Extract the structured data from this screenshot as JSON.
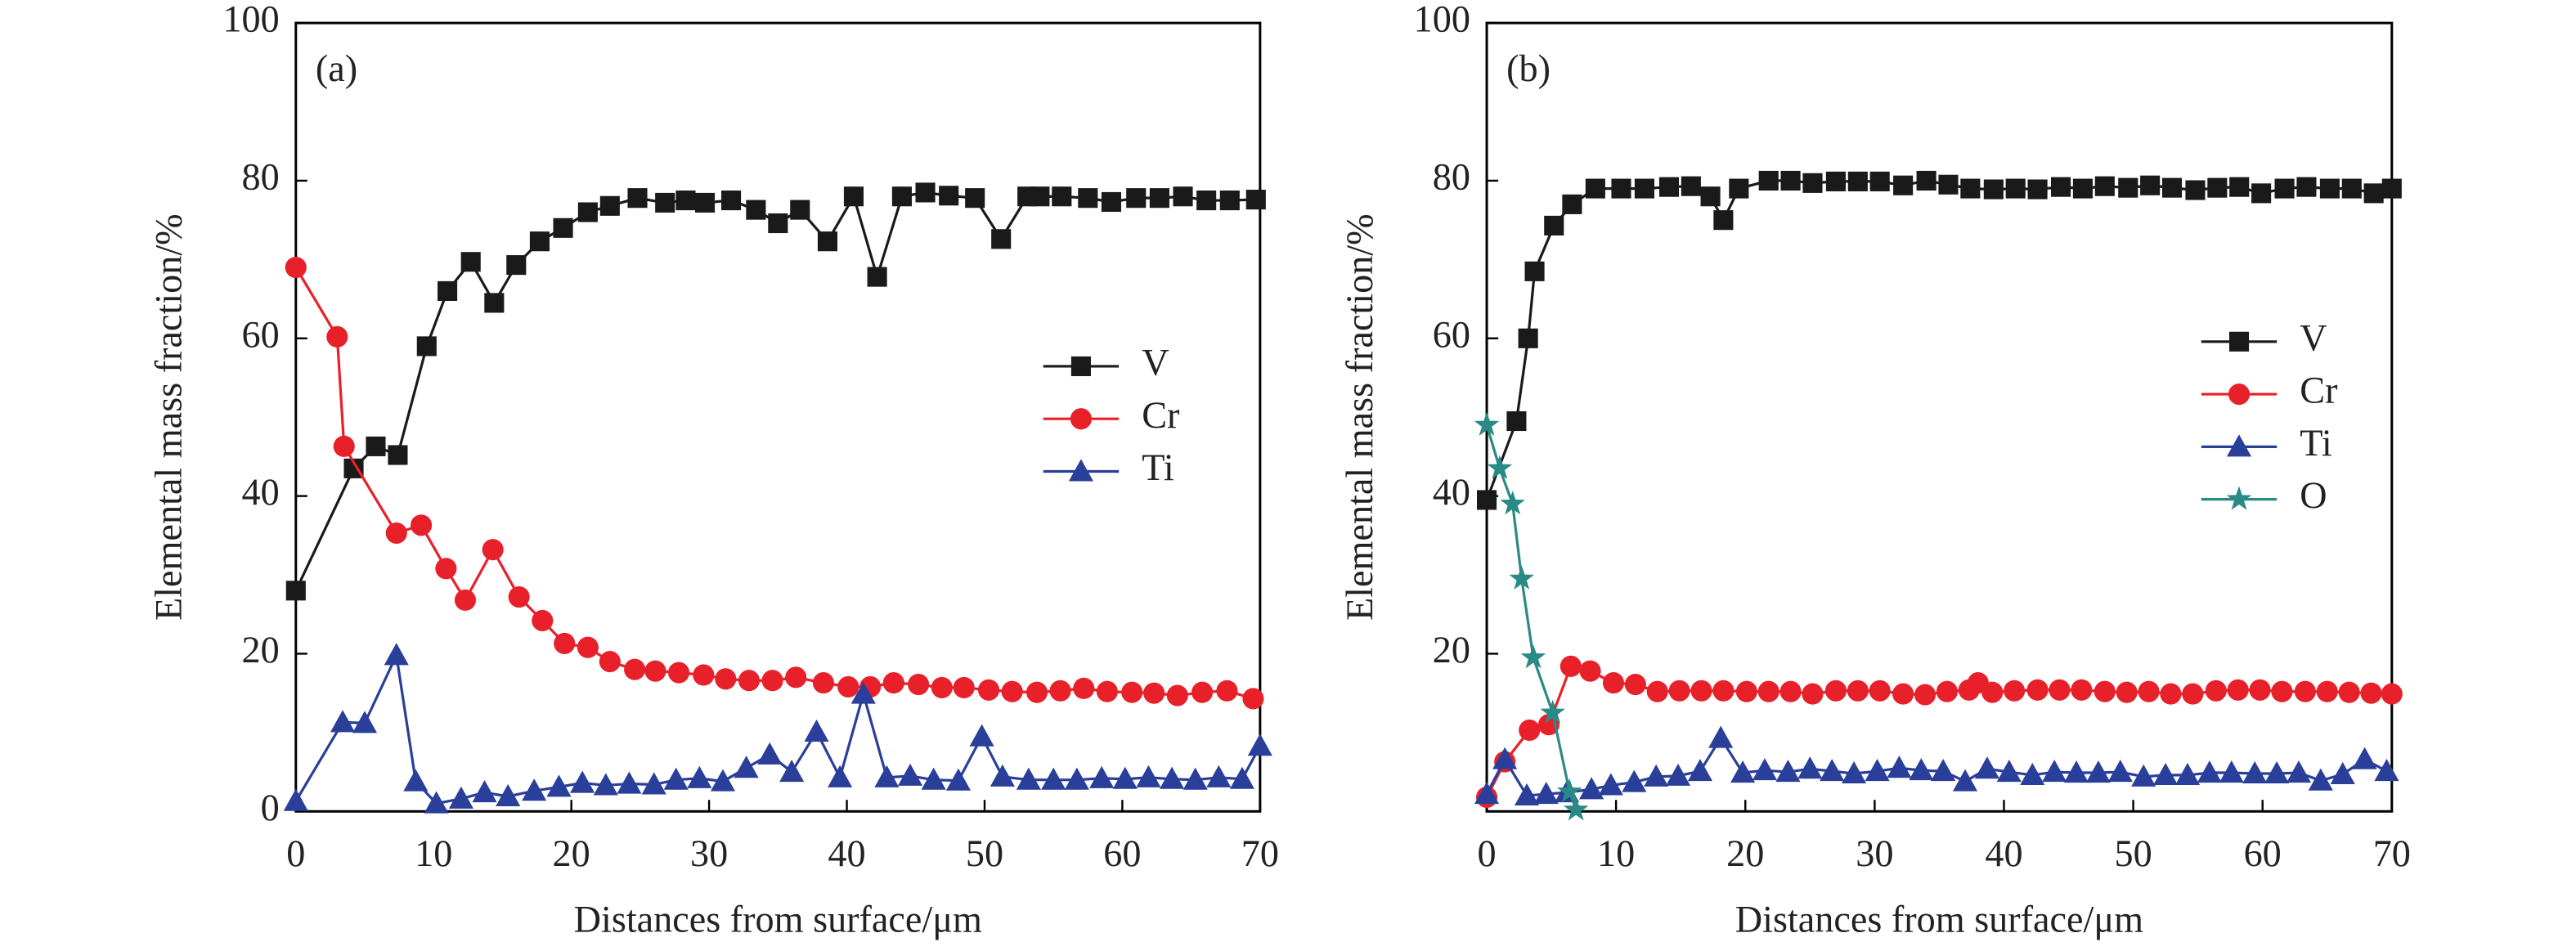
{
  "chart_data": [
    {
      "type": "line",
      "label": "(a)",
      "xlabel": "Distances from surface/μm",
      "ylabel": "Elemental mass fraction/%",
      "xlim": [
        0,
        70
      ],
      "ylim": [
        0,
        100
      ],
      "xticks": [
        0,
        10,
        20,
        30,
        40,
        50,
        60,
        70
      ],
      "yticks": [
        0,
        20,
        40,
        60,
        80,
        100
      ],
      "series": [
        {
          "name": "V",
          "color": "#1a1a1a",
          "marker": "square",
          "x": [
            0,
            4.2,
            5.8,
            7.4,
            9.5,
            11.0,
            12.7,
            14.4,
            16.0,
            17.7,
            19.4,
            21.2,
            22.8,
            24.8,
            26.8,
            28.3,
            29.7,
            31.6,
            33.4,
            35.0,
            36.6,
            38.6,
            40.5,
            42.2,
            44.0,
            45.7,
            47.4,
            49.3,
            51.2,
            53.1,
            54.0,
            55.6,
            57.5,
            59.2,
            61.0,
            62.7,
            64.4,
            66.1,
            67.8,
            69.7
          ],
          "values": [
            28,
            43.5,
            46.3,
            45.2,
            59,
            66,
            69.7,
            64.5,
            69.3,
            72.3,
            74,
            76,
            76.8,
            77.8,
            77.2,
            77.5,
            77.2,
            77.5,
            76.3,
            74.6,
            76.3,
            72.3,
            78,
            67.8,
            78,
            78.5,
            78.1,
            77.8,
            72.6,
            78,
            78,
            78,
            77.8,
            77.3,
            77.8,
            77.8,
            78,
            77.5,
            77.5,
            77.6
          ]
        },
        {
          "name": "Cr",
          "color": "#e8202a",
          "marker": "circle",
          "x": [
            0,
            3.0,
            3.5,
            7.3,
            9.1,
            10.9,
            12.3,
            14.3,
            16.2,
            17.9,
            19.5,
            21.2,
            22.8,
            24.6,
            26.1,
            27.8,
            29.6,
            31.2,
            32.9,
            34.6,
            36.3,
            38.3,
            40.1,
            41.7,
            43.4,
            45.2,
            46.9,
            48.5,
            50.3,
            52.0,
            53.8,
            55.5,
            57.2,
            58.9,
            60.7,
            62.3,
            64.0,
            65.8,
            67.6,
            69.5
          ],
          "values": [
            69,
            60.2,
            46.3,
            35.3,
            36.3,
            30.8,
            26.8,
            33.2,
            27.2,
            24.2,
            21.3,
            20.8,
            19,
            18,
            17.8,
            17.6,
            17.3,
            16.8,
            16.6,
            16.6,
            17,
            16.3,
            15.8,
            15.8,
            16.3,
            16.1,
            15.7,
            15.7,
            15.4,
            15.2,
            15.1,
            15.3,
            15.6,
            15.2,
            15.1,
            15.0,
            14.7,
            15.1,
            15.3,
            14.3
          ]
        },
        {
          "name": "Ti",
          "color": "#2a3f9a",
          "marker": "triangle",
          "x": [
            0,
            3.4,
            5.0,
            7.3,
            8.7,
            10.2,
            12.0,
            13.7,
            15.4,
            17.3,
            19.1,
            20.8,
            22.5,
            24.2,
            26.0,
            27.6,
            29.3,
            31.0,
            32.7,
            34.4,
            36.0,
            37.8,
            39.5,
            41.2,
            42.9,
            44.6,
            46.3,
            48.1,
            49.8,
            51.3,
            53.2,
            55.0,
            56.7,
            58.5,
            60.2,
            61.9,
            63.6,
            65.3,
            67.0,
            68.7,
            70
          ],
          "values": [
            1.3,
            11.3,
            11.2,
            19.8,
            3.8,
            1.0,
            1.6,
            2.4,
            1.9,
            2.6,
            3.1,
            3.6,
            3.3,
            3.5,
            3.4,
            4.0,
            4.2,
            3.8,
            5.5,
            7.2,
            5.0,
            10.1,
            4.3,
            14.9,
            4.3,
            4.5,
            4.0,
            3.9,
            9.5,
            4.4,
            4.0,
            4.0,
            4.0,
            4.2,
            4.1,
            4.3,
            4.1,
            4.0,
            4.3,
            4.1,
            8.3
          ]
        }
      ]
    },
    {
      "type": "line",
      "label": "(b)",
      "xlabel": "Distances from surface/μm",
      "ylabel": "Elemental mass fraction/%",
      "xlim": [
        0,
        70
      ],
      "ylim": [
        0,
        100
      ],
      "xticks": [
        0,
        10,
        20,
        30,
        40,
        50,
        60,
        70
      ],
      "yticks": [
        20,
        40,
        60,
        80,
        100
      ],
      "series": [
        {
          "name": "V",
          "color": "#1a1a1a",
          "marker": "square",
          "x": [
            0,
            2.3,
            3.2,
            3.7,
            5.2,
            6.6,
            8.4,
            10.4,
            12.2,
            14.1,
            15.8,
            17.3,
            18.3,
            19.5,
            21.8,
            23.5,
            25.2,
            27.0,
            28.7,
            30.4,
            32.2,
            34.0,
            35.7,
            37.4,
            39.2,
            40.9,
            42.6,
            44.4,
            46.1,
            47.8,
            49.6,
            51.3,
            53.0,
            54.8,
            56.5,
            58.2,
            59.9,
            61.7,
            63.4,
            65.2,
            66.9,
            68.6,
            70
          ],
          "values": [
            39.5,
            49.5,
            60,
            68.5,
            74.3,
            77,
            79,
            79,
            79,
            79.2,
            79.3,
            78,
            75,
            79,
            80,
            80,
            79.7,
            79.9,
            79.9,
            79.9,
            79.4,
            80,
            79.5,
            79,
            78.9,
            79,
            78.9,
            79.2,
            79,
            79.3,
            79.1,
            79.4,
            79.1,
            78.8,
            79.1,
            79.2,
            78.4,
            79,
            79.2,
            79,
            79,
            78.4,
            79
          ]
        },
        {
          "name": "Cr",
          "color": "#e8202a",
          "marker": "circle",
          "x": [
            0,
            1.4,
            3.3,
            4.8,
            6.5,
            8.0,
            9.8,
            11.5,
            13.2,
            14.9,
            16.6,
            18.3,
            20.1,
            21.8,
            23.5,
            25.2,
            27.0,
            28.7,
            30.4,
            32.2,
            33.9,
            35.6,
            37.3,
            38.0,
            39.1,
            40.8,
            42.6,
            44.3,
            46.0,
            47.8,
            49.5,
            51.2,
            52.9,
            54.6,
            56.4,
            58.1,
            59.8,
            61.5,
            63.3,
            65.0,
            66.7,
            68.4,
            70
          ],
          "values": [
            1.8,
            6.3,
            10.3,
            11,
            18.4,
            17.8,
            16.3,
            16.1,
            15.2,
            15.3,
            15.3,
            15.3,
            15.2,
            15.2,
            15.2,
            14.9,
            15.3,
            15.3,
            15.3,
            14.9,
            14.8,
            15.2,
            15.4,
            16.3,
            15.1,
            15.3,
            15.4,
            15.4,
            15.4,
            15.2,
            15.1,
            15.2,
            14.9,
            14.9,
            15.3,
            15.4,
            15.4,
            15.2,
            15.2,
            15.2,
            15.1,
            15.0,
            14.9
          ]
        },
        {
          "name": "Ti",
          "color": "#2a3f9a",
          "marker": "triangle",
          "x": [
            0,
            1.4,
            3.1,
            4.6,
            6.2,
            8.1,
            9.6,
            11.4,
            13.1,
            14.8,
            16.5,
            18.1,
            19.8,
            21.5,
            23.3,
            25.0,
            26.7,
            28.4,
            30.2,
            31.9,
            33.6,
            35.3,
            37.0,
            38.7,
            40.4,
            42.2,
            43.9,
            45.6,
            47.3,
            49.0,
            50.8,
            52.5,
            54.2,
            55.9,
            57.6,
            59.4,
            61.1,
            62.8,
            64.5,
            66.2,
            67.9,
            69.6
          ],
          "values": [
            2.2,
            6.6,
            2.0,
            2.2,
            2.4,
            2.8,
            3.3,
            3.7,
            4.4,
            4.5,
            5.1,
            9.3,
            4.9,
            5.2,
            5.0,
            5.4,
            5.1,
            4.8,
            5.1,
            5.5,
            5.2,
            5.1,
            3.8,
            5.4,
            5.0,
            4.6,
            5.0,
            4.9,
            4.9,
            5.0,
            4.4,
            4.6,
            4.6,
            4.9,
            4.9,
            4.8,
            4.8,
            4.9,
            3.9,
            4.7,
            6.6,
            5.1
          ]
        },
        {
          "name": "O",
          "color": "#2a8a86",
          "marker": "star",
          "x": [
            0,
            1.0,
            2.0,
            2.7,
            3.6,
            5.1,
            6.4,
            6.9
          ],
          "values": [
            49,
            43.5,
            39,
            29.5,
            19.5,
            12.5,
            2.5,
            0.2
          ]
        }
      ]
    }
  ]
}
